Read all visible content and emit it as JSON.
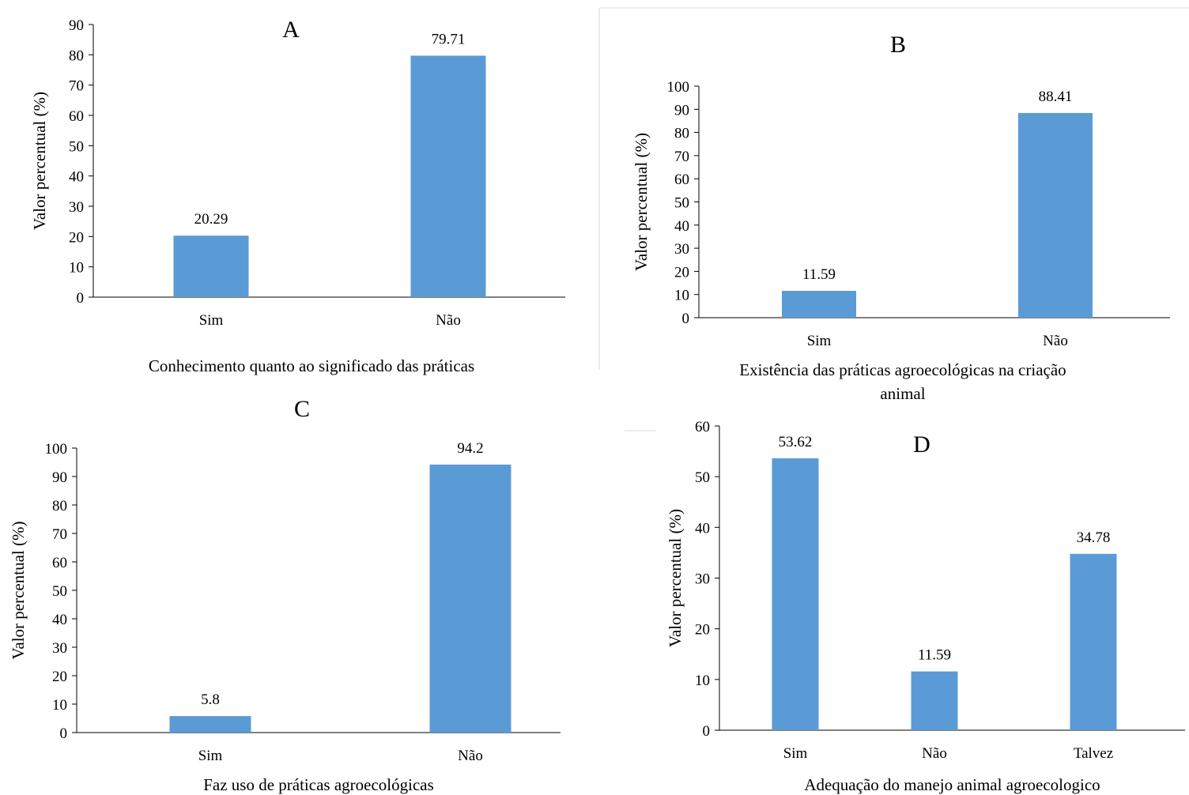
{
  "chart_data": [
    {
      "type": "bar",
      "panel_label": "A",
      "categories": [
        "Sim",
        "Não"
      ],
      "values": [
        20.29,
        79.71
      ],
      "data_labels": [
        "20.29",
        "79.71"
      ],
      "xlabel": "Conhecimento quanto ao significado das práticas",
      "ylabel": "Valor percentual (%)",
      "ylim": [
        0,
        90
      ],
      "yticks": [
        0,
        10,
        20,
        30,
        40,
        50,
        60,
        70,
        80,
        90
      ],
      "bar_color": "#5b9bd5",
      "grid": false
    },
    {
      "type": "bar",
      "panel_label": "B",
      "categories": [
        "Sim",
        "Não"
      ],
      "values": [
        11.59,
        88.41
      ],
      "data_labels": [
        "11.59",
        "88.41"
      ],
      "xlabel": "Existência das práticas agroecológicas na criação animal",
      "ylabel": "Valor percentual (%)",
      "ylim": [
        0,
        100
      ],
      "yticks": [
        0,
        10,
        20,
        30,
        40,
        50,
        60,
        70,
        80,
        90,
        100
      ],
      "bar_color": "#5b9bd5",
      "grid": false
    },
    {
      "type": "bar",
      "panel_label": "C",
      "categories": [
        "Sim",
        "Não"
      ],
      "values": [
        5.8,
        94.2
      ],
      "data_labels": [
        "5.8",
        "94.2"
      ],
      "xlabel": "Faz uso de práticas agroecológicas",
      "ylabel": "Valor percentual (%)",
      "ylim": [
        0,
        100
      ],
      "yticks": [
        0,
        10,
        20,
        30,
        40,
        50,
        60,
        70,
        80,
        90,
        100
      ],
      "bar_color": "#5b9bd5",
      "grid": false
    },
    {
      "type": "bar",
      "panel_label": "D",
      "categories": [
        "Sim",
        "Não",
        "Talvez"
      ],
      "values": [
        53.62,
        11.59,
        34.78
      ],
      "data_labels": [
        "53.62",
        "11.59",
        "34.78"
      ],
      "xlabel": "Adequação do manejo animal agroecologico",
      "ylabel": "Valor percentual (%)",
      "ylim": [
        0,
        60
      ],
      "yticks": [
        0,
        10,
        20,
        30,
        40,
        50,
        60
      ],
      "bar_color": "#5b9bd5",
      "grid": false
    }
  ]
}
